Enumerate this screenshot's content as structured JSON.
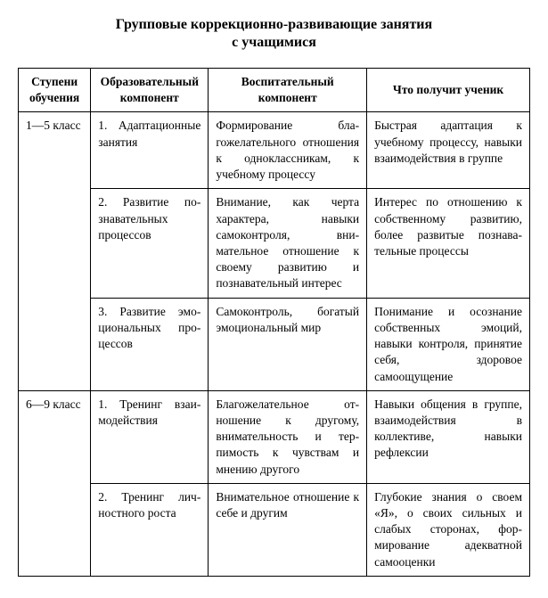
{
  "title": "Групповые коррекционно-развивающие занятия\nс учащимися",
  "columns": [
    "Ступени обучения",
    "Образователь­ный компонент",
    "Воспитательный компонент",
    "Что получит ученик"
  ],
  "groups": [
    {
      "level": "1—5 класс",
      "rows": [
        {
          "edu": "1. Адаптацион­ные занятия",
          "vos": "Формирование бла­гожелательного от­ношения к одноклас­сникам, к учебному процессу",
          "out": "Быстрая адаптация к учебному процессу, на­выки взаимодействия в группе"
        },
        {
          "edu": "2. Развитие по­знавательных процессов",
          "vos": "Внимание, как чер­та характера, навыки самоконтроля, вни­мательное отношение к своему развитию и познавательный ин­терес",
          "out": "Интерес по отношению к собственному развитию, более развитые познава­тельные процессы"
        },
        {
          "edu": "3. Развитие эмо­циональных про­цессов",
          "vos": "Самоконтроль, бога­тый эмоциональный мир",
          "out": "Понимание и осознание собственных эмоций, навыки контроля, при­нятие себя, здоровое самоощущение"
        }
      ]
    },
    {
      "level": "6—9 класс",
      "rows": [
        {
          "edu": "1. Тренинг взаи­модействия",
          "vos": "Благожелательное от­ношение к другому, внимательность и тер­пимость к чувствам и мнению другого",
          "out": "Навыки общения в груп­пе, взаимодействия в коллективе, навыки рефлексии"
        },
        {
          "edu": "2. Тренинг лич­ностного роста",
          "vos": "Внимательное отноше­ние к себе и другим",
          "out": "Глубокие знания о своем «Я», о своих сильных и слабых сторонах, фор­мирование адекватной самооценки"
        }
      ]
    }
  ]
}
